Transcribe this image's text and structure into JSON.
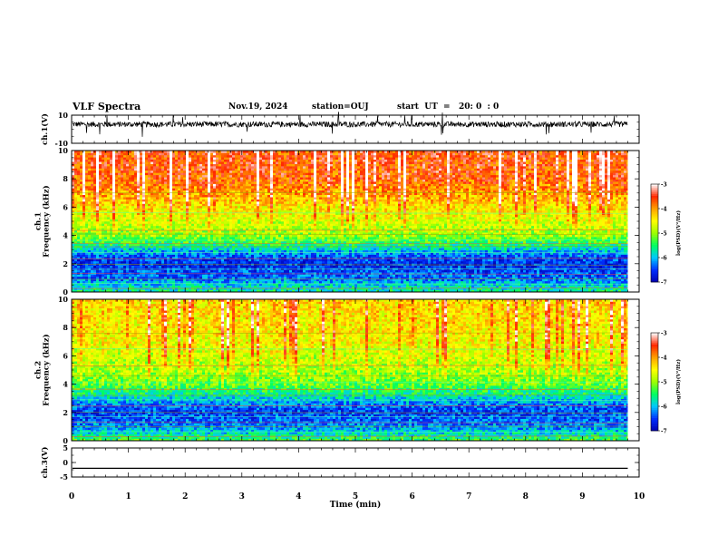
{
  "header": {
    "title": "VLF Spectra",
    "date": "Nov.19, 2024",
    "station": "station=OUJ",
    "start_ut": "start  UT  =   20: 0  : 0"
  },
  "chart_data": [
    {
      "type": "line",
      "name": "ch1-waveform",
      "ylabel": "ch.1(V)",
      "ylim": [
        -10,
        10
      ],
      "yticks": [
        10,
        -10
      ],
      "xlim": [
        0,
        10
      ],
      "baseline": 3.5,
      "amplitude_band": [
        1.5,
        5.5
      ],
      "data_end_min": 9.8
    },
    {
      "type": "heatmap",
      "name": "ch1-spectrogram",
      "ylabel": "ch.1\nFrequency  (kHz)",
      "ylim": [
        0,
        10
      ],
      "yticks": [
        0,
        2,
        4,
        6,
        8,
        10
      ],
      "xlim": [
        0,
        10
      ],
      "data_end_min": 9.8,
      "colorbar": {
        "label": "log(PSD)(V²/Hz)",
        "range": [
          -7,
          -3
        ],
        "ticks": [
          -3,
          -4,
          -5,
          -6,
          -7
        ]
      },
      "profile_khz_to_logpsd": [
        [
          0,
          -5.6
        ],
        [
          0.5,
          -5.9
        ],
        [
          1,
          -6.3
        ],
        [
          2,
          -6.6
        ],
        [
          2.5,
          -6.4
        ],
        [
          3,
          -5.9
        ],
        [
          3.5,
          -5.4
        ],
        [
          4,
          -5.0
        ],
        [
          5,
          -4.7
        ],
        [
          6,
          -4.4
        ],
        [
          7,
          -4.0
        ],
        [
          8,
          -3.7
        ],
        [
          10,
          -3.6
        ]
      ]
    },
    {
      "type": "heatmap",
      "name": "ch2-spectrogram",
      "ylabel": "ch.2\nFrequency  (kHz)",
      "ylim": [
        0,
        10
      ],
      "yticks": [
        0,
        2,
        4,
        6,
        8,
        10
      ],
      "xlim": [
        0,
        10
      ],
      "data_end_min": 9.8,
      "colorbar": {
        "label": "log(PSD)(V²/Hz)",
        "range": [
          -7,
          -3
        ],
        "ticks": [
          -3,
          -4,
          -5,
          -6,
          -7
        ]
      },
      "profile_khz_to_logpsd": [
        [
          0,
          -5.3
        ],
        [
          0.5,
          -5.8
        ],
        [
          1,
          -6.2
        ],
        [
          2,
          -6.5
        ],
        [
          2.5,
          -6.3
        ],
        [
          3,
          -5.9
        ],
        [
          3.5,
          -5.5
        ],
        [
          4,
          -5.2
        ],
        [
          5,
          -4.9
        ],
        [
          6,
          -4.7
        ],
        [
          7,
          -4.5
        ],
        [
          8,
          -4.4
        ],
        [
          10,
          -4.3
        ]
      ]
    },
    {
      "type": "line",
      "name": "ch3-waveform",
      "ylabel": "ch.3(V)",
      "ylim": [
        -5,
        5
      ],
      "yticks": [
        5,
        0,
        -5
      ],
      "xlim": [
        0,
        10
      ],
      "xticks": [
        0,
        1,
        2,
        3,
        4,
        5,
        6,
        7,
        8,
        9,
        10
      ],
      "xlabel": "Time  (min)",
      "baseline": -2,
      "data_end_min": 9.8
    }
  ],
  "colors": {
    "colormap": [
      "#0000b0",
      "#0030ff",
      "#00c8ff",
      "#00ff60",
      "#9cff00",
      "#ffff00",
      "#ffa000",
      "#ff2800",
      "#ffffff"
    ]
  }
}
